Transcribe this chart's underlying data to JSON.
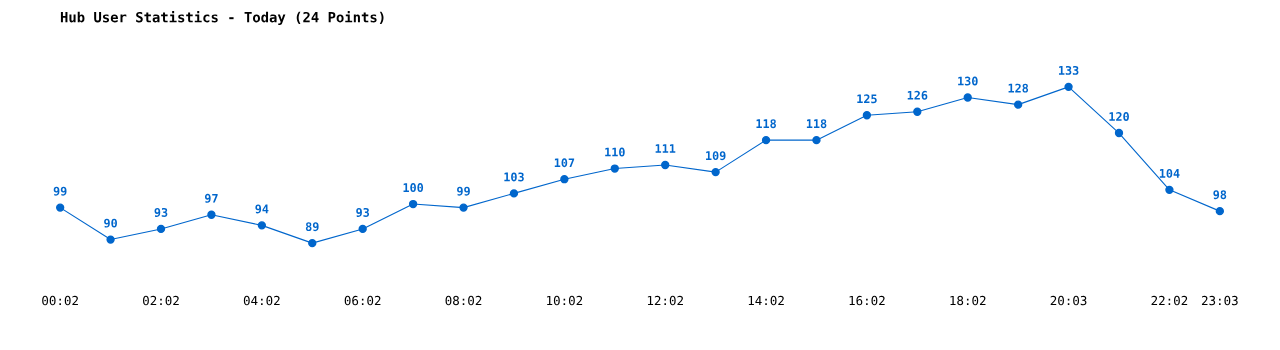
{
  "chart_data": {
    "type": "line",
    "title": "Hub User Statistics - Today (24 Points)",
    "categories": [
      "00:02",
      null,
      "02:02",
      null,
      "04:02",
      null,
      "06:02",
      null,
      "08:02",
      null,
      "10:02",
      null,
      "12:02",
      null,
      "14:02",
      null,
      "16:02",
      null,
      "18:02",
      null,
      "20:03",
      null,
      "22:02",
      "23:03"
    ],
    "values": [
      99,
      90,
      93,
      97,
      94,
      89,
      93,
      100,
      99,
      103,
      107,
      110,
      111,
      109,
      118,
      118,
      125,
      126,
      130,
      128,
      133,
      120,
      104,
      98
    ],
    "color": "#0066cc",
    "marker": "circle",
    "line_style": "solid",
    "data_labels": true,
    "grid": false,
    "legend": false,
    "tick_labels": "x"
  }
}
